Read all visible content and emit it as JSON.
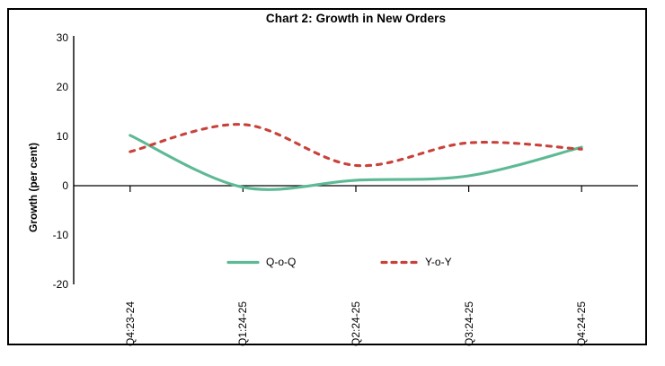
{
  "title": "Chart 2: Growth in New Orders",
  "y_axis": {
    "label": "Growth (per cent)"
  },
  "chart_data": {
    "type": "line",
    "title": "Chart 2: Growth in New Orders",
    "xlabel": "",
    "ylabel": "Growth (per cent)",
    "ylim": [
      -20,
      30
    ],
    "yticks": [
      30,
      20,
      10,
      0,
      -10,
      -20
    ],
    "grid": false,
    "legend_position": "bottom-inside",
    "categories": [
      "Q4:23-24",
      "Q1:24-25",
      "Q2:24-25",
      "Q3:24-25",
      "Q4:24-25"
    ],
    "series": [
      {
        "name": "Q-o-Q",
        "style": "solid",
        "color": "#5eb995",
        "values": [
          10.2,
          -0.3,
          1.1,
          2.0,
          7.8
        ]
      },
      {
        "name": "Y-o-Y",
        "style": "dashed",
        "color": "#c8423a",
        "values": [
          6.9,
          12.4,
          4.1,
          8.7,
          7.4
        ]
      }
    ],
    "axis_color": "#000000"
  }
}
